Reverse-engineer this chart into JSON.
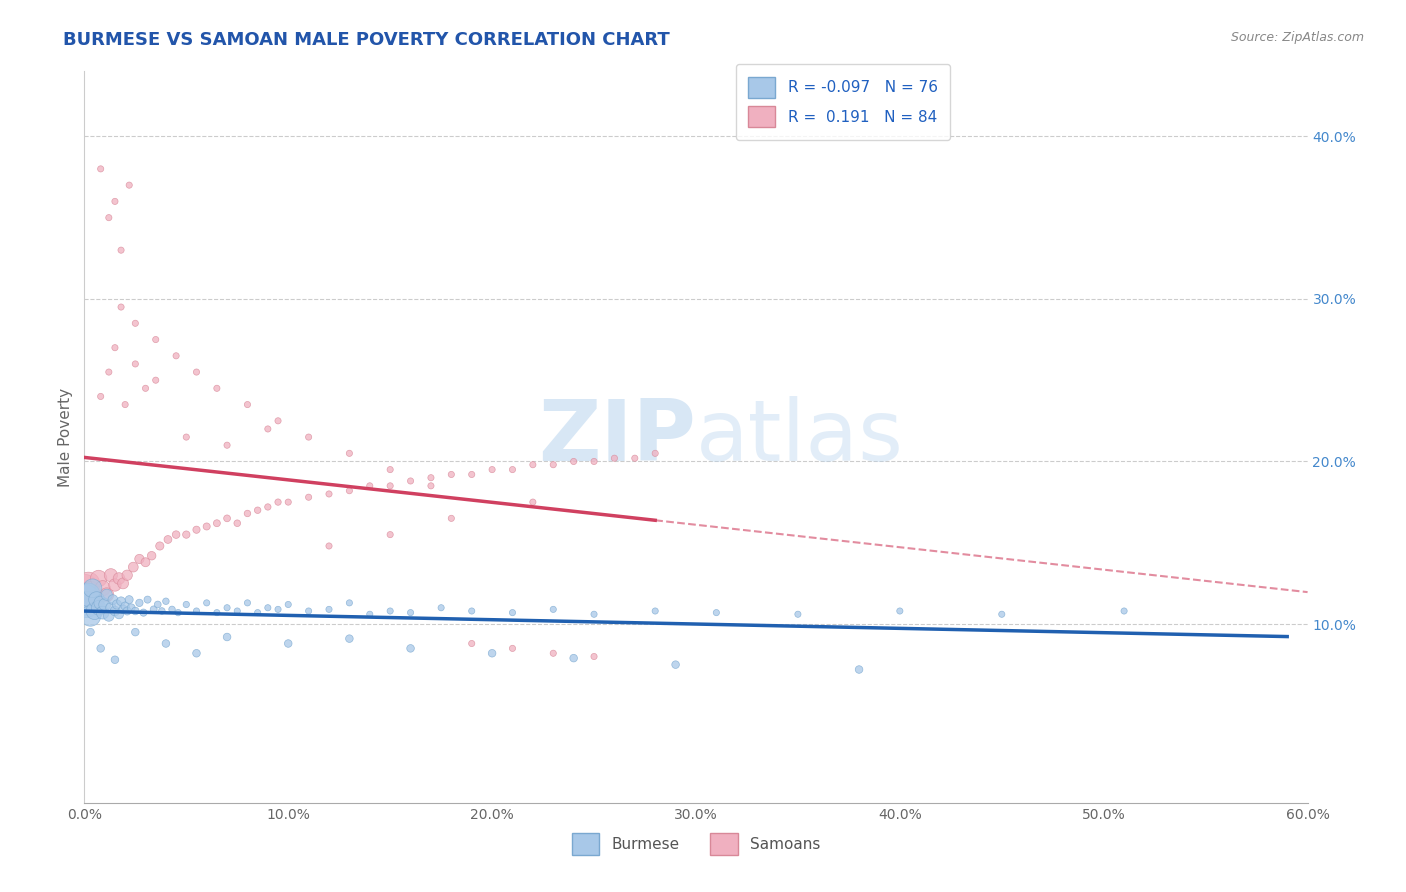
{
  "title": "BURMESE VS SAMOAN MALE POVERTY CORRELATION CHART",
  "source": "Source: ZipAtlas.com",
  "ylabel": "Male Poverty",
  "xlim": [
    0.0,
    0.6
  ],
  "ylim": [
    -0.01,
    0.44
  ],
  "xticks": [
    0.0,
    0.1,
    0.2,
    0.3,
    0.4,
    0.5,
    0.6
  ],
  "xticklabels": [
    "0.0%",
    "10.0%",
    "20.0%",
    "30.0%",
    "40.0%",
    "50.0%",
    "60.0%"
  ],
  "ytick_vals": [
    0.1,
    0.2,
    0.3,
    0.4
  ],
  "ytick_labels": [
    "10.0%",
    "20.0%",
    "30.0%",
    "40.0%"
  ],
  "grid_lines": [
    0.1,
    0.2,
    0.3,
    0.4
  ],
  "burmese_color": "#a8c8e8",
  "burmese_edge_color": "#7aa8d0",
  "samoan_color": "#f0b0c0",
  "samoan_edge_color": "#d88898",
  "burmese_line_color": "#2060b0",
  "samoan_line_color": "#d04060",
  "burmese_R": -0.097,
  "burmese_N": 76,
  "samoan_R": 0.191,
  "samoan_N": 84,
  "title_color": "#2255aa",
  "source_color": "#888888",
  "ytick_color": "#4488cc",
  "xtick_color": "#666666",
  "ylabel_color": "#666666",
  "watermark_color": "#c8ddf0",
  "legend_label_color": "#2060c0",
  "background_color": "#ffffff",
  "burmese_x": [
    0.0,
    0.001,
    0.002,
    0.003,
    0.004,
    0.005,
    0.006,
    0.007,
    0.008,
    0.009,
    0.01,
    0.011,
    0.012,
    0.013,
    0.014,
    0.015,
    0.016,
    0.017,
    0.018,
    0.019,
    0.02,
    0.021,
    0.022,
    0.023,
    0.025,
    0.027,
    0.029,
    0.031,
    0.034,
    0.036,
    0.038,
    0.04,
    0.043,
    0.046,
    0.05,
    0.055,
    0.06,
    0.065,
    0.07,
    0.075,
    0.08,
    0.085,
    0.09,
    0.095,
    0.1,
    0.11,
    0.12,
    0.13,
    0.14,
    0.15,
    0.16,
    0.175,
    0.19,
    0.21,
    0.23,
    0.25,
    0.28,
    0.31,
    0.35,
    0.4,
    0.45,
    0.51,
    0.003,
    0.008,
    0.015,
    0.025,
    0.04,
    0.055,
    0.07,
    0.1,
    0.13,
    0.16,
    0.2,
    0.24,
    0.29,
    0.38
  ],
  "burmese_y": [
    0.115,
    0.112,
    0.118,
    0.105,
    0.122,
    0.108,
    0.115,
    0.11,
    0.113,
    0.107,
    0.112,
    0.118,
    0.105,
    0.11,
    0.115,
    0.108,
    0.112,
    0.106,
    0.114,
    0.109,
    0.111,
    0.108,
    0.115,
    0.11,
    0.108,
    0.113,
    0.107,
    0.115,
    0.109,
    0.112,
    0.108,
    0.114,
    0.109,
    0.107,
    0.112,
    0.108,
    0.113,
    0.107,
    0.11,
    0.108,
    0.113,
    0.107,
    0.11,
    0.109,
    0.112,
    0.108,
    0.109,
    0.113,
    0.106,
    0.108,
    0.107,
    0.11,
    0.108,
    0.107,
    0.109,
    0.106,
    0.108,
    0.107,
    0.106,
    0.108,
    0.106,
    0.108,
    0.095,
    0.085,
    0.078,
    0.095,
    0.088,
    0.082,
    0.092,
    0.088,
    0.091,
    0.085,
    0.082,
    0.079,
    0.075,
    0.072
  ],
  "burmese_sizes": [
    500,
    350,
    280,
    220,
    180,
    150,
    130,
    110,
    95,
    85,
    75,
    65,
    60,
    55,
    50,
    48,
    45,
    43,
    40,
    38,
    36,
    34,
    33,
    32,
    30,
    28,
    27,
    26,
    25,
    24,
    23,
    22,
    22,
    21,
    21,
    20,
    20,
    20,
    20,
    20,
    20,
    20,
    20,
    20,
    20,
    20,
    20,
    20,
    20,
    20,
    20,
    20,
    20,
    20,
    20,
    20,
    20,
    20,
    20,
    20,
    20,
    20,
    30,
    30,
    30,
    30,
    30,
    30,
    30,
    30,
    30,
    30,
    30,
    30,
    30,
    30
  ],
  "samoan_x": [
    0.0,
    0.001,
    0.002,
    0.003,
    0.005,
    0.007,
    0.009,
    0.011,
    0.013,
    0.015,
    0.017,
    0.019,
    0.021,
    0.024,
    0.027,
    0.03,
    0.033,
    0.037,
    0.041,
    0.045,
    0.05,
    0.055,
    0.06,
    0.065,
    0.07,
    0.075,
    0.08,
    0.085,
    0.09,
    0.095,
    0.1,
    0.11,
    0.12,
    0.13,
    0.14,
    0.15,
    0.16,
    0.17,
    0.18,
    0.19,
    0.2,
    0.21,
    0.22,
    0.23,
    0.24,
    0.25,
    0.26,
    0.27,
    0.28,
    0.015,
    0.025,
    0.035,
    0.008,
    0.012,
    0.02,
    0.03,
    0.05,
    0.07,
    0.09,
    0.012,
    0.018,
    0.008,
    0.015,
    0.022,
    0.018,
    0.025,
    0.035,
    0.045,
    0.055,
    0.065,
    0.08,
    0.095,
    0.11,
    0.13,
    0.15,
    0.17,
    0.19,
    0.21,
    0.23,
    0.25,
    0.22,
    0.18,
    0.15,
    0.12
  ],
  "samoan_y": [
    0.122,
    0.118,
    0.125,
    0.12,
    0.115,
    0.128,
    0.122,
    0.118,
    0.13,
    0.124,
    0.128,
    0.125,
    0.13,
    0.135,
    0.14,
    0.138,
    0.142,
    0.148,
    0.152,
    0.155,
    0.155,
    0.158,
    0.16,
    0.162,
    0.165,
    0.162,
    0.168,
    0.17,
    0.172,
    0.175,
    0.175,
    0.178,
    0.18,
    0.182,
    0.185,
    0.185,
    0.188,
    0.19,
    0.192,
    0.192,
    0.195,
    0.195,
    0.198,
    0.198,
    0.2,
    0.2,
    0.202,
    0.202,
    0.205,
    0.27,
    0.26,
    0.25,
    0.24,
    0.255,
    0.235,
    0.245,
    0.215,
    0.21,
    0.22,
    0.35,
    0.33,
    0.38,
    0.36,
    0.37,
    0.295,
    0.285,
    0.275,
    0.265,
    0.255,
    0.245,
    0.235,
    0.225,
    0.215,
    0.205,
    0.195,
    0.185,
    0.088,
    0.085,
    0.082,
    0.08,
    0.175,
    0.165,
    0.155,
    0.148
  ],
  "samoan_sizes": [
    400,
    320,
    260,
    210,
    170,
    140,
    120,
    100,
    90,
    80,
    70,
    62,
    56,
    50,
    45,
    42,
    38,
    35,
    32,
    30,
    28,
    27,
    26,
    25,
    24,
    23,
    22,
    22,
    21,
    21,
    20,
    20,
    20,
    20,
    20,
    20,
    20,
    20,
    20,
    20,
    20,
    20,
    20,
    20,
    20,
    20,
    20,
    20,
    20,
    20,
    20,
    20,
    20,
    20,
    20,
    20,
    20,
    20,
    20,
    20,
    20,
    20,
    20,
    20,
    20,
    20,
    20,
    20,
    20,
    20,
    20,
    20,
    20,
    20,
    20,
    20,
    20,
    20,
    20,
    20,
    20,
    20,
    20,
    20
  ]
}
